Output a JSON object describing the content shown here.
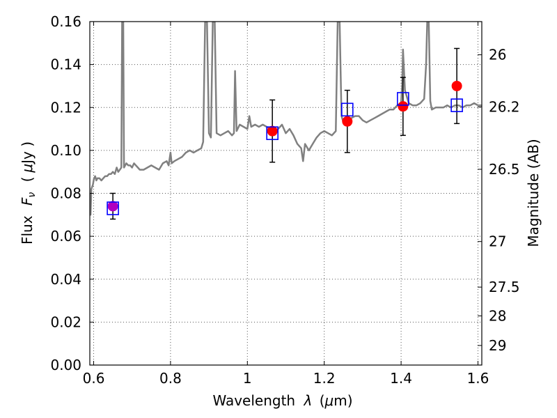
{
  "chart_data": {
    "type": "scatter",
    "xlabel_prefix": "Wavelength",
    "xlabel_symbol": "λ",
    "xlabel_unit_open": "(",
    "xlabel_unit_mu": "μ",
    "xlabel_unit_rest": "m)",
    "ylabel_prefix": "Flux",
    "ylabel_symbol": "F",
    "ylabel_subscript": "ν",
    "ylabel_unit_open": "(",
    "ylabel_unit_mu": "μ",
    "ylabel_unit_rest": "Jy )",
    "y2label": "Magnitude (AB)",
    "xlim": [
      0.59,
      1.61
    ],
    "ylim": [
      0.0,
      0.16
    ],
    "xticks": [
      0.6,
      0.8,
      1.0,
      1.2,
      1.4,
      1.6
    ],
    "xtick_labels": [
      "0.6",
      "0.8",
      "1",
      "1.2",
      "1.4",
      "1.6"
    ],
    "yticks": [
      0.0,
      0.02,
      0.04,
      0.06,
      0.08,
      0.1,
      0.12,
      0.14,
      0.16
    ],
    "ytick_labels": [
      "0.00",
      "0.02",
      "0.04",
      "0.06",
      "0.08",
      "0.10",
      "0.12",
      "0.14",
      "0.16"
    ],
    "y2ticks": [
      26,
      26.2,
      26.5,
      27,
      27.5,
      28,
      29
    ],
    "y2tick_labels": [
      "26",
      "26.2",
      "26.5",
      "27",
      "27.5",
      "28",
      "29"
    ],
    "grid": true,
    "colors": {
      "model": "#808080",
      "observed": "#ff0000",
      "observed_first": "#b000c0",
      "synthetic": "#0000ff",
      "errorbar": "#000000",
      "grid": "#555555"
    },
    "series": [
      {
        "name": "model spectrum",
        "kind": "line",
        "points": [
          [
            0.59,
            0.08
          ],
          [
            0.592,
            0.07
          ],
          [
            0.594,
            0.082
          ],
          [
            0.598,
            0.084
          ],
          [
            0.601,
            0.087
          ],
          [
            0.604,
            0.088
          ],
          [
            0.607,
            0.086
          ],
          [
            0.61,
            0.087
          ],
          [
            0.615,
            0.087
          ],
          [
            0.62,
            0.086
          ],
          [
            0.625,
            0.087
          ],
          [
            0.63,
            0.088
          ],
          [
            0.635,
            0.088
          ],
          [
            0.64,
            0.089
          ],
          [
            0.645,
            0.089
          ],
          [
            0.65,
            0.09
          ],
          [
            0.655,
            0.089
          ],
          [
            0.66,
            0.092
          ],
          [
            0.664,
            0.09
          ],
          [
            0.668,
            0.091
          ],
          [
            0.672,
            0.092
          ],
          [
            0.674,
            0.16
          ],
          [
            0.677,
            0.16
          ],
          [
            0.679,
            0.092
          ],
          [
            0.685,
            0.094
          ],
          [
            0.69,
            0.093
          ],
          [
            0.695,
            0.093
          ],
          [
            0.7,
            0.092
          ],
          [
            0.705,
            0.094
          ],
          [
            0.71,
            0.093
          ],
          [
            0.715,
            0.092
          ],
          [
            0.72,
            0.091
          ],
          [
            0.73,
            0.091
          ],
          [
            0.74,
            0.092
          ],
          [
            0.75,
            0.093
          ],
          [
            0.76,
            0.092
          ],
          [
            0.77,
            0.091
          ],
          [
            0.78,
            0.094
          ],
          [
            0.79,
            0.095
          ],
          [
            0.795,
            0.093
          ],
          [
            0.8,
            0.099
          ],
          [
            0.803,
            0.094
          ],
          [
            0.81,
            0.095
          ],
          [
            0.82,
            0.096
          ],
          [
            0.83,
            0.097
          ],
          [
            0.84,
            0.099
          ],
          [
            0.85,
            0.1
          ],
          [
            0.86,
            0.099
          ],
          [
            0.87,
            0.1
          ],
          [
            0.88,
            0.101
          ],
          [
            0.885,
            0.104
          ],
          [
            0.89,
            0.16
          ],
          [
            0.895,
            0.16
          ],
          [
            0.9,
            0.108
          ],
          [
            0.905,
            0.106
          ],
          [
            0.91,
            0.16
          ],
          [
            0.915,
            0.16
          ],
          [
            0.92,
            0.108
          ],
          [
            0.93,
            0.107
          ],
          [
            0.94,
            0.108
          ],
          [
            0.95,
            0.109
          ],
          [
            0.96,
            0.107
          ],
          [
            0.965,
            0.108
          ],
          [
            0.968,
            0.137
          ],
          [
            0.972,
            0.109
          ],
          [
            0.98,
            0.112
          ],
          [
            0.99,
            0.111
          ],
          [
            1.0,
            0.11
          ],
          [
            1.005,
            0.116
          ],
          [
            1.01,
            0.111
          ],
          [
            1.02,
            0.112
          ],
          [
            1.03,
            0.111
          ],
          [
            1.04,
            0.112
          ],
          [
            1.05,
            0.111
          ],
          [
            1.06,
            0.11
          ],
          [
            1.07,
            0.109
          ],
          [
            1.08,
            0.11
          ],
          [
            1.09,
            0.112
          ],
          [
            1.1,
            0.108
          ],
          [
            1.11,
            0.11
          ],
          [
            1.12,
            0.107
          ],
          [
            1.13,
            0.103
          ],
          [
            1.14,
            0.101
          ],
          [
            1.145,
            0.095
          ],
          [
            1.15,
            0.103
          ],
          [
            1.16,
            0.1
          ],
          [
            1.17,
            0.103
          ],
          [
            1.18,
            0.106
          ],
          [
            1.19,
            0.108
          ],
          [
            1.2,
            0.109
          ],
          [
            1.21,
            0.108
          ],
          [
            1.22,
            0.107
          ],
          [
            1.23,
            0.109
          ],
          [
            1.235,
            0.16
          ],
          [
            1.24,
            0.16
          ],
          [
            1.245,
            0.116
          ],
          [
            1.25,
            0.113
          ],
          [
            1.26,
            0.114
          ],
          [
            1.27,
            0.115
          ],
          [
            1.28,
            0.116
          ],
          [
            1.29,
            0.116
          ],
          [
            1.3,
            0.114
          ],
          [
            1.31,
            0.113
          ],
          [
            1.32,
            0.114
          ],
          [
            1.33,
            0.115
          ],
          [
            1.34,
            0.116
          ],
          [
            1.35,
            0.117
          ],
          [
            1.36,
            0.118
          ],
          [
            1.37,
            0.119
          ],
          [
            1.38,
            0.119
          ],
          [
            1.39,
            0.121
          ],
          [
            1.4,
            0.122
          ],
          [
            1.403,
            0.131
          ],
          [
            1.405,
            0.147
          ],
          [
            1.41,
            0.128
          ],
          [
            1.42,
            0.122
          ],
          [
            1.43,
            0.121
          ],
          [
            1.44,
            0.121
          ],
          [
            1.45,
            0.122
          ],
          [
            1.46,
            0.124
          ],
          [
            1.465,
            0.14
          ],
          [
            1.468,
            0.16
          ],
          [
            1.472,
            0.16
          ],
          [
            1.476,
            0.123
          ],
          [
            1.48,
            0.119
          ],
          [
            1.49,
            0.12
          ],
          [
            1.5,
            0.12
          ],
          [
            1.51,
            0.12
          ],
          [
            1.52,
            0.121
          ],
          [
            1.53,
            0.12
          ],
          [
            1.54,
            0.121
          ],
          [
            1.55,
            0.121
          ],
          [
            1.56,
            0.12
          ],
          [
            1.57,
            0.121
          ],
          [
            1.58,
            0.121
          ],
          [
            1.59,
            0.122
          ],
          [
            1.6,
            0.121
          ],
          [
            1.61,
            0.121
          ]
        ]
      },
      {
        "name": "synthetic photometry",
        "kind": "open-square",
        "points": [
          [
            0.65,
            0.073
          ],
          [
            1.065,
            0.108
          ],
          [
            1.26,
            0.119
          ],
          [
            1.405,
            0.124
          ],
          [
            1.545,
            0.121
          ]
        ]
      },
      {
        "name": "observed photometry",
        "kind": "filled-circle",
        "points": [
          {
            "x": 0.65,
            "y": 0.074,
            "err": 0.006
          },
          {
            "x": 1.065,
            "y": 0.109,
            "err": 0.0145
          },
          {
            "x": 1.26,
            "y": 0.1135,
            "err": 0.0145
          },
          {
            "x": 1.405,
            "y": 0.1205,
            "err": 0.0135
          },
          {
            "x": 1.545,
            "y": 0.13,
            "err": 0.0175
          }
        ]
      }
    ]
  }
}
